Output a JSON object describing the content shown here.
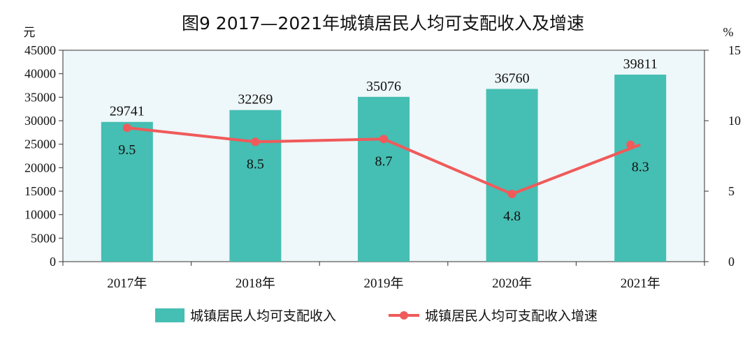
{
  "chart_data": {
    "type": "bar",
    "title": "图9  2017—2021年城镇居民人均可支配收入及增速",
    "categories": [
      "2017年",
      "2018年",
      "2019年",
      "2020年",
      "2021年"
    ],
    "left_axis": {
      "unit": "元",
      "ylim": [
        0,
        45000
      ],
      "ticks": [
        "0",
        "5000",
        "10000",
        "15000",
        "20000",
        "25000",
        "30000",
        "35000",
        "40000",
        "45000"
      ]
    },
    "right_axis": {
      "unit": "%",
      "ylim": [
        0,
        15
      ],
      "ticks": [
        "0",
        "5",
        "10",
        "15"
      ]
    },
    "series": [
      {
        "name": "城镇居民人均可支配收入",
        "type": "bar",
        "axis": "left",
        "values": [
          29741,
          32269,
          35076,
          36760,
          39811
        ],
        "labels": [
          "29741",
          "32269",
          "35076",
          "36760",
          "39811"
        ],
        "color": "#45BEB3"
      },
      {
        "name": "城镇居民人均可支配收入增速",
        "type": "line",
        "axis": "right",
        "values": [
          9.5,
          8.5,
          8.7,
          4.8,
          8.3
        ],
        "labels": [
          "9.5",
          "8.5",
          "8.7",
          "4.8",
          "8.3"
        ],
        "color": "#F05A5A"
      }
    ],
    "plot_background": "#EEF7F9",
    "grid": false,
    "legend_position": "bottom"
  }
}
